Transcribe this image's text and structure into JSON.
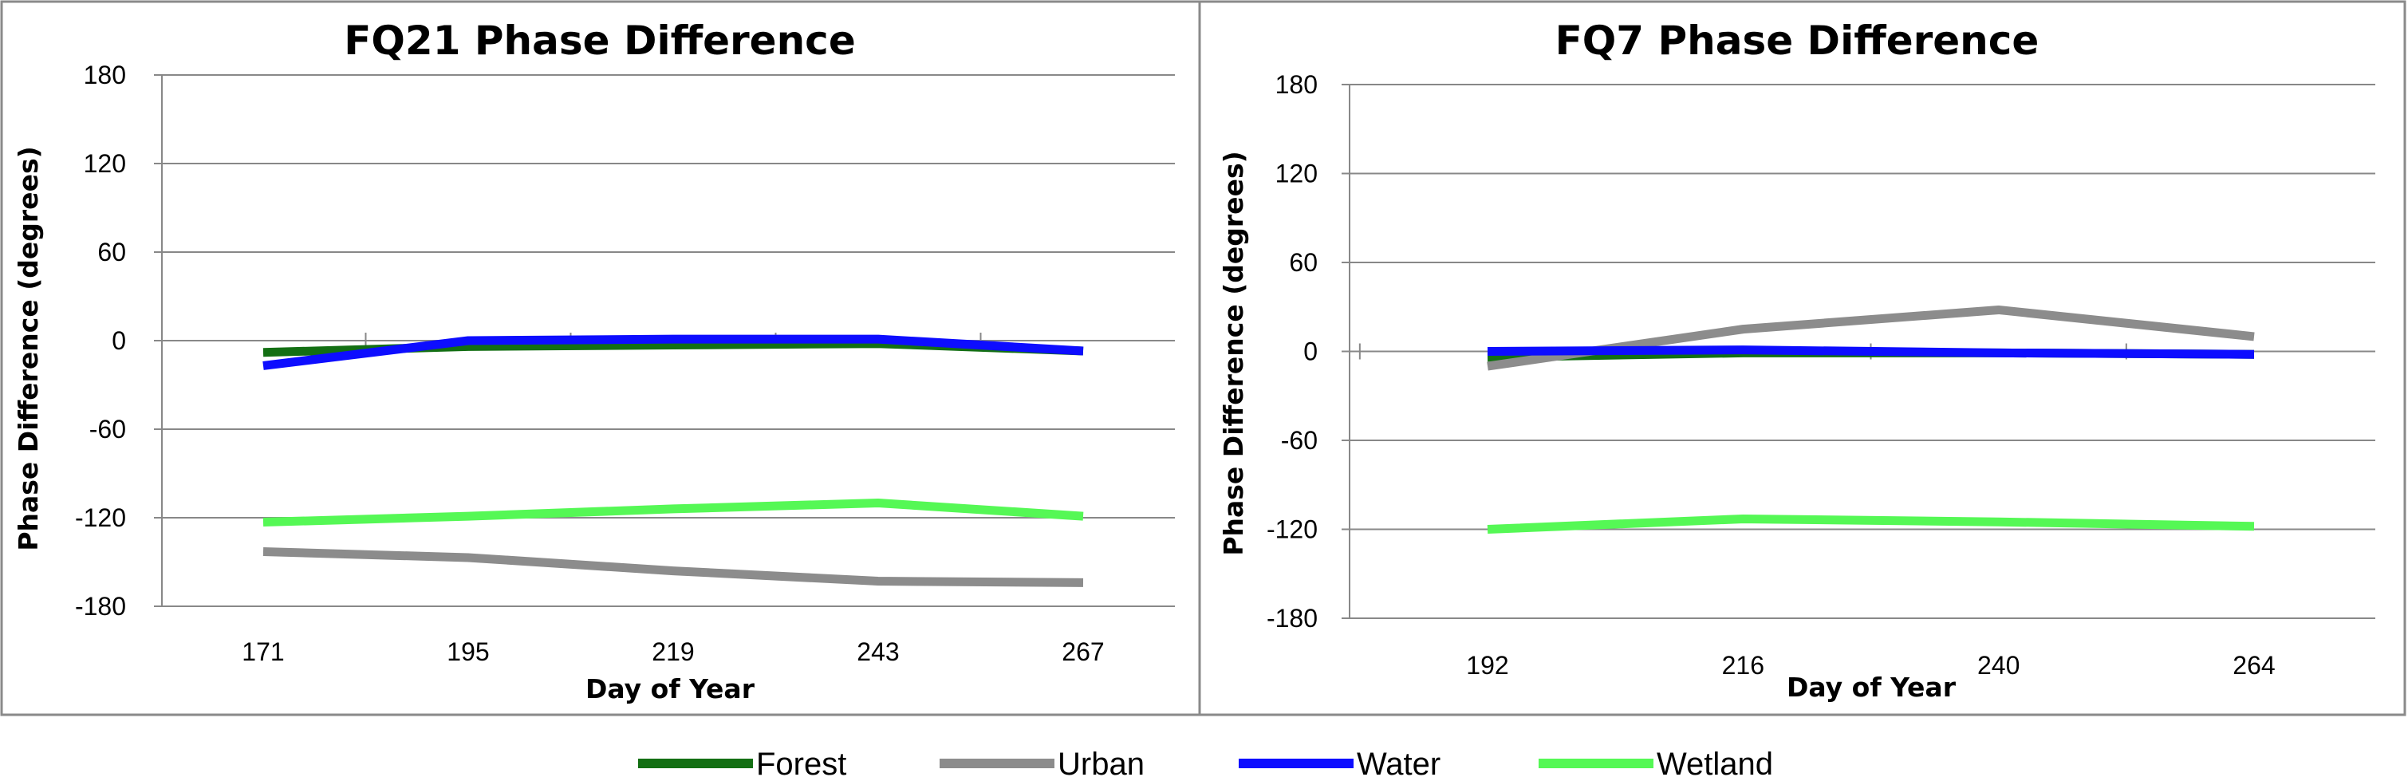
{
  "chart_data": [
    {
      "type": "line",
      "title": "FQ21 Phase Difference",
      "xlabel": "Day of Year",
      "ylabel": "Phase Difference (degrees)",
      "categories": [
        "171",
        "195",
        "219",
        "243",
        "267"
      ],
      "ylim": [
        -180,
        180
      ],
      "yticks": [
        180,
        120,
        60,
        0,
        -60,
        -120,
        -180
      ],
      "grid": true,
      "series": [
        {
          "name": "Forest",
          "values": [
            -8,
            -4,
            -3,
            -2,
            -7
          ]
        },
        {
          "name": "Urban",
          "values": [
            -143,
            -147,
            -156,
            -163,
            -164
          ]
        },
        {
          "name": "Water",
          "values": [
            -17,
            0,
            1,
            1,
            -7
          ]
        },
        {
          "name": "Wetland",
          "values": [
            -123,
            -119,
            -114,
            -110,
            -119
          ]
        }
      ]
    },
    {
      "type": "line",
      "title": "FQ7 Phase Difference",
      "xlabel": "Day of Year",
      "ylabel": "Phase Difference (degrees)",
      "categories": [
        "192",
        "216",
        "240",
        "264"
      ],
      "ylim": [
        -180,
        180
      ],
      "yticks": [
        180,
        120,
        60,
        0,
        -60,
        -120,
        -180
      ],
      "grid": true,
      "series": [
        {
          "name": "Forest",
          "values": [
            -4,
            -1,
            -1,
            -2
          ]
        },
        {
          "name": "Urban",
          "values": [
            -10,
            15,
            28,
            10
          ]
        },
        {
          "name": "Water",
          "values": [
            0,
            1,
            -1,
            -2
          ]
        },
        {
          "name": "Wetland",
          "values": [
            -120,
            -113,
            -115,
            -118
          ]
        }
      ]
    }
  ],
  "legend": {
    "position": "bottom",
    "items": [
      {
        "name": "Forest",
        "color": "#136f13"
      },
      {
        "name": "Urban",
        "color": "#8c8c8c"
      },
      {
        "name": "Water",
        "color": "#0d0dff"
      },
      {
        "name": "Wetland",
        "color": "#55f855"
      }
    ]
  },
  "colors": {
    "Forest": "#136f13",
    "Urban": "#8c8c8c",
    "Water": "#0d0dff",
    "Wetland": "#55f855",
    "grid": "#888888",
    "frame": "#8a8a8a"
  }
}
